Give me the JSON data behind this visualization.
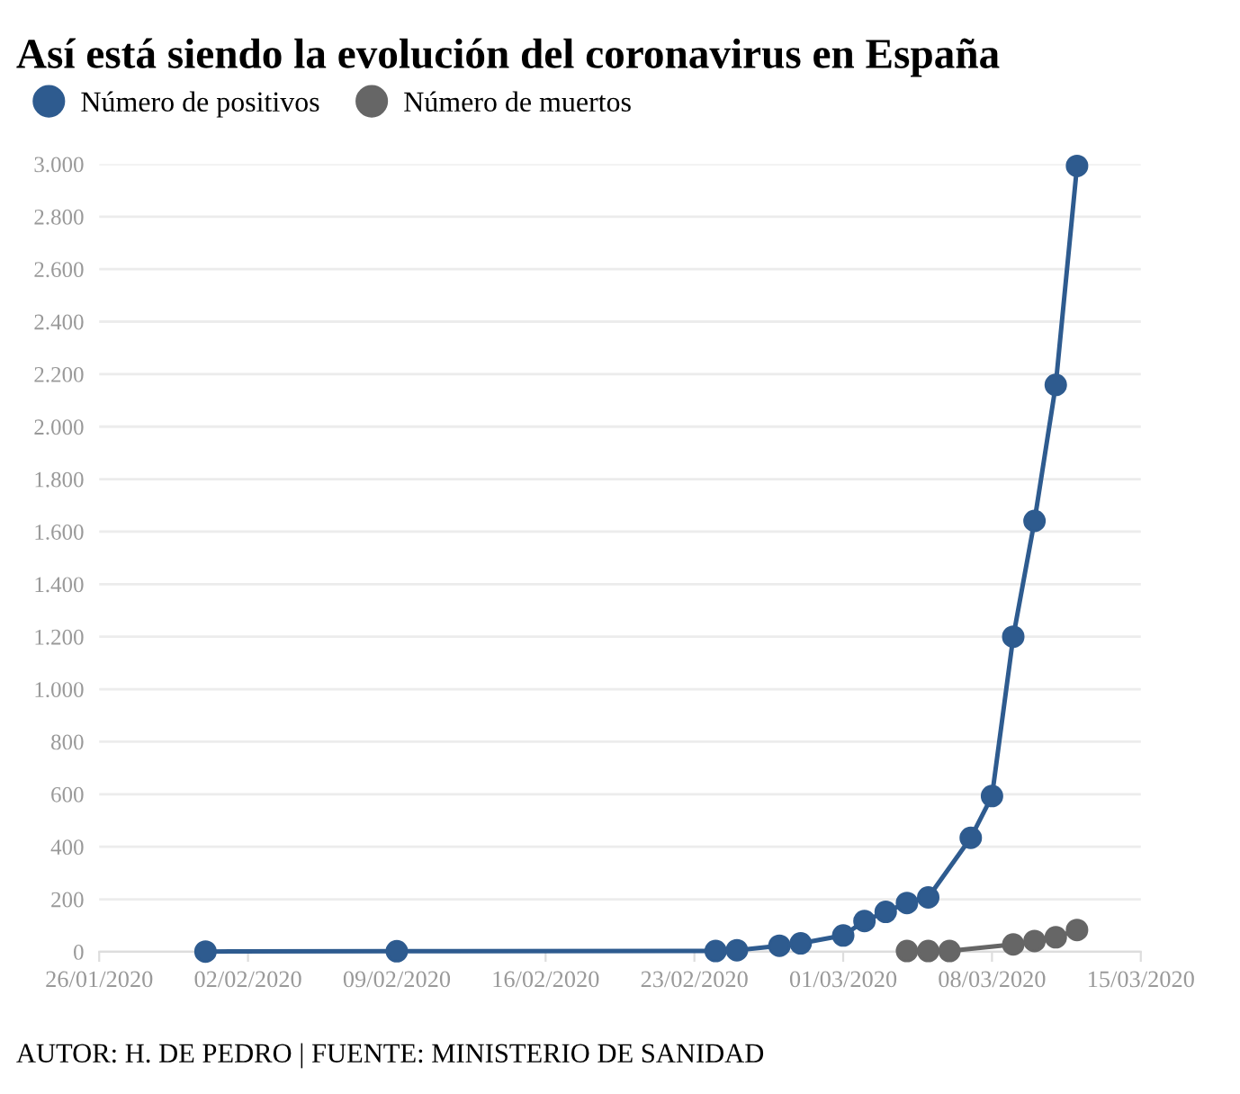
{
  "chart_data": {
    "type": "line",
    "title": "Así está siendo la evolución del coronavirus en España",
    "xlim": [
      "2020-01-26",
      "2020-03-15"
    ],
    "xticks": [
      {
        "value": "2020-01-26",
        "label": "26/01/2020"
      },
      {
        "value": "2020-02-02",
        "label": "02/02/2020"
      },
      {
        "value": "2020-02-09",
        "label": "09/02/2020"
      },
      {
        "value": "2020-02-16",
        "label": "16/02/2020"
      },
      {
        "value": "2020-02-23",
        "label": "23/02/2020"
      },
      {
        "value": "2020-03-01",
        "label": "01/03/2020"
      },
      {
        "value": "2020-03-08",
        "label": "08/03/2020"
      },
      {
        "value": "2020-03-15",
        "label": "15/03/2020"
      }
    ],
    "ylim": [
      0,
      3000
    ],
    "yticks": [
      {
        "value": 0,
        "label": "0"
      },
      {
        "value": 200,
        "label": "200"
      },
      {
        "value": 400,
        "label": "400"
      },
      {
        "value": 600,
        "label": "600"
      },
      {
        "value": 800,
        "label": "800"
      },
      {
        "value": 1000,
        "label": "1.000"
      },
      {
        "value": 1200,
        "label": "1.200"
      },
      {
        "value": 1400,
        "label": "1.400"
      },
      {
        "value": 1600,
        "label": "1.600"
      },
      {
        "value": 1800,
        "label": "1.800"
      },
      {
        "value": 2000,
        "label": "2.000"
      },
      {
        "value": 2200,
        "label": "2.200"
      },
      {
        "value": 2400,
        "label": "2.400"
      },
      {
        "value": 2600,
        "label": "2.600"
      },
      {
        "value": 2800,
        "label": "2.800"
      },
      {
        "value": 3000,
        "label": "3.000"
      }
    ],
    "grid": "y",
    "legend": "top left",
    "marker": "circle",
    "line_style": "solid",
    "series": [
      {
        "name": "Número de positivos",
        "color": "#2e5b8f",
        "x": [
          "2020-01-31",
          "2020-02-09",
          "2020-02-24",
          "2020-02-25",
          "2020-02-27",
          "2020-02-28",
          "2020-03-01",
          "2020-03-02",
          "2020-03-03",
          "2020-03-04",
          "2020-03-05",
          "2020-03-07",
          "2020-03-08",
          "2020-03-09",
          "2020-03-10",
          "2020-03-11",
          "2020-03-12"
        ],
        "values": [
          1,
          2,
          3,
          6,
          23,
          32,
          62,
          117,
          152,
          186,
          207,
          434,
          593,
          1200,
          1641,
          2159,
          2993
        ]
      },
      {
        "name": "Número de muertos",
        "color": "#666666",
        "x": [
          "2020-03-04",
          "2020-03-05",
          "2020-03-06",
          "2020-03-09",
          "2020-03-10",
          "2020-03-11",
          "2020-03-12"
        ],
        "values": [
          3,
          3,
          3,
          28,
          41,
          55,
          83
        ]
      }
    ],
    "annotations": [
      "AUTOR: H. DE PEDRO | FUENTE: MINISTERIO DE SANIDAD"
    ]
  }
}
